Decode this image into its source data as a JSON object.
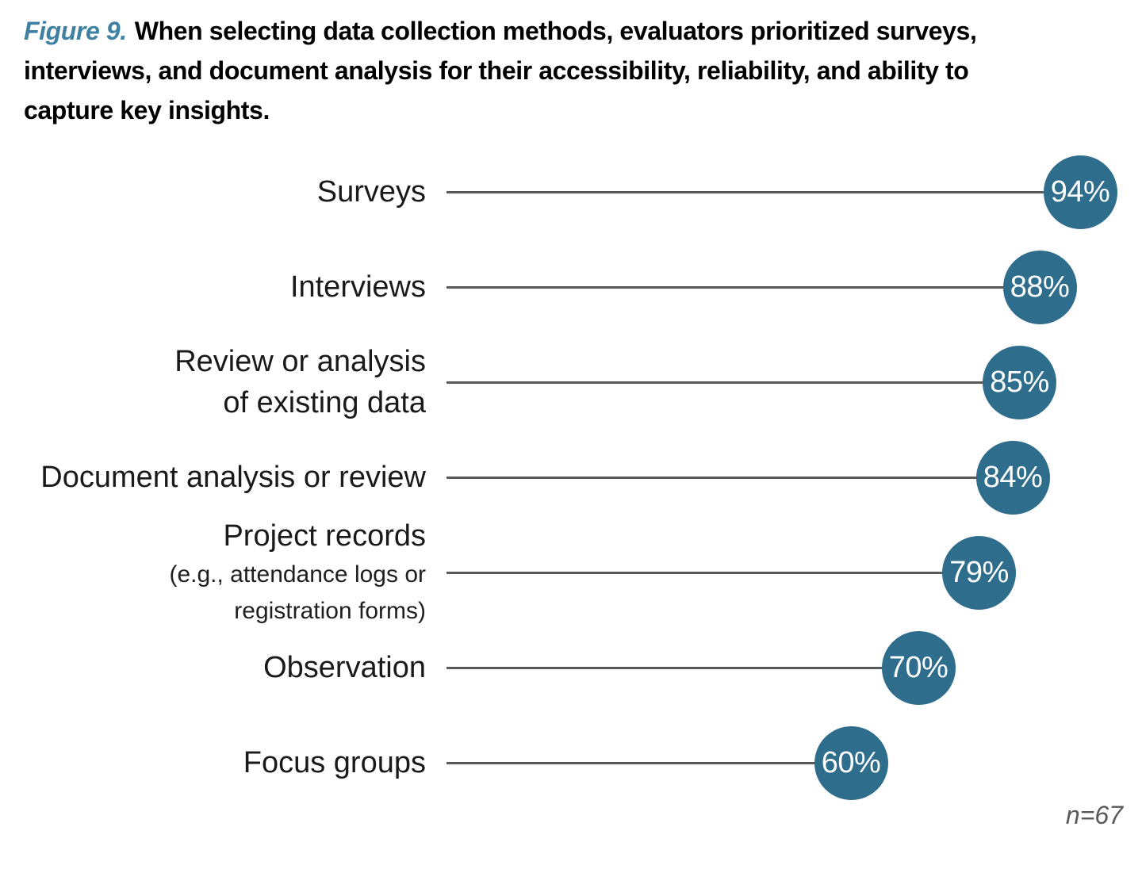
{
  "title": {
    "figure_label": "Figure 9.",
    "lines": [
      "When selecting data collection methods, evaluators prioritized surveys,",
      "interviews, and document analysis for their accessibility, reliability, and ability to",
      "capture key insights."
    ]
  },
  "annotation": "n=67",
  "colors": {
    "accent": "#2E6D8C",
    "figure_label": "#3E81A3",
    "line": "#595959",
    "annotation": "#595959",
    "bubble_text": "#ffffff",
    "label_text": "#1a1a1a"
  },
  "chart_data": {
    "type": "bar",
    "style": "lollipop",
    "orientation": "horizontal",
    "title": "Figure 9. When selecting data collection methods, evaluators prioritized surveys, interviews, and document analysis for their accessibility, reliability, and ability to capture key insights.",
    "xlabel": "",
    "ylabel": "",
    "xlim": [
      0,
      100
    ],
    "unit": "%",
    "grid": false,
    "legend": false,
    "annotation": "n=67",
    "categories": [
      "Surveys",
      "Interviews",
      "Review or analysis of existing data",
      "Document analysis or review",
      "Project records (e.g., attendance logs or registration forms)",
      "Observation",
      "Focus groups"
    ],
    "values": [
      94,
      88,
      85,
      84,
      79,
      70,
      60
    ],
    "rows": [
      {
        "label_lines": [
          "Surveys"
        ],
        "sub_lines": [],
        "value": 94,
        "display": "94%"
      },
      {
        "label_lines": [
          "Interviews"
        ],
        "sub_lines": [],
        "value": 88,
        "display": "88%"
      },
      {
        "label_lines": [
          "Review or analysis",
          "of existing data"
        ],
        "sub_lines": [],
        "value": 85,
        "display": "85%"
      },
      {
        "label_lines": [
          "Document analysis or review"
        ],
        "sub_lines": [],
        "value": 84,
        "display": "84%"
      },
      {
        "label_lines": [
          "Project records"
        ],
        "sub_lines": [
          "(e.g., attendance logs or",
          "registration forms)"
        ],
        "value": 79,
        "display": "79%"
      },
      {
        "label_lines": [
          "Observation"
        ],
        "sub_lines": [],
        "value": 70,
        "display": "70%"
      },
      {
        "label_lines": [
          "Focus groups"
        ],
        "sub_lines": [],
        "value": 60,
        "display": "60%"
      }
    ]
  }
}
